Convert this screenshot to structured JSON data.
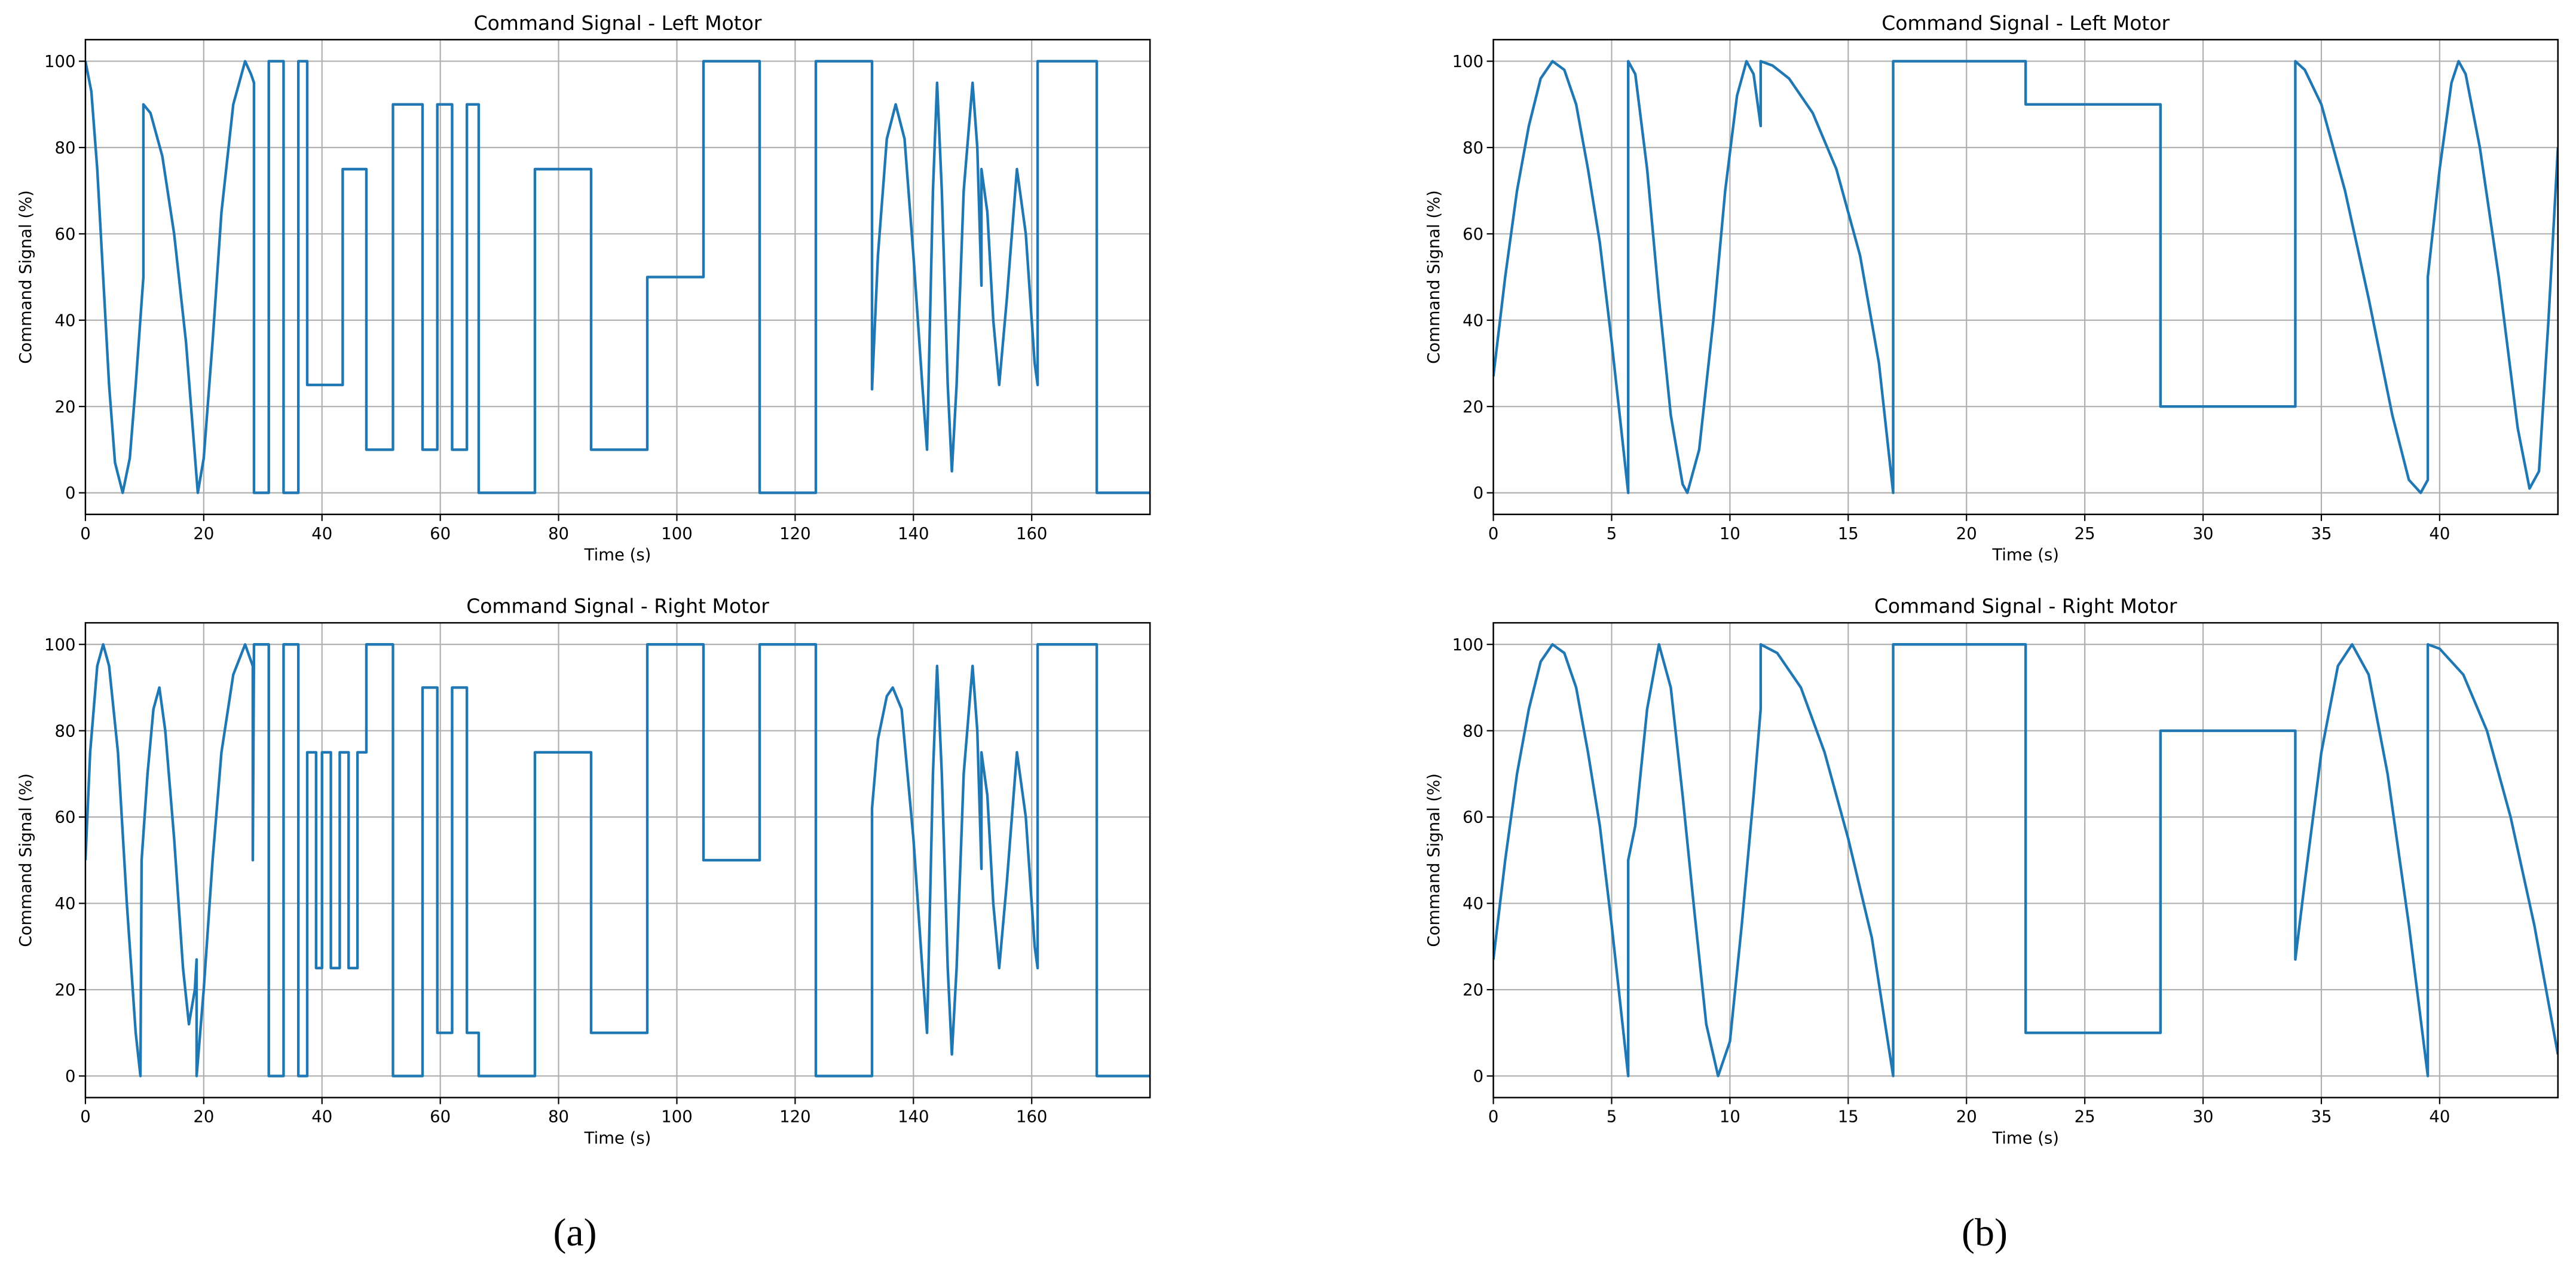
{
  "chart_data": [
    {
      "type": "line",
      "title": "Command Signal - Left Motor",
      "xlabel": "Time (s)",
      "ylabel": "Command Signal (%)",
      "color": "#1f77b4",
      "grid": true,
      "xlim": [
        0,
        180
      ],
      "xticks": [
        0,
        20,
        40,
        60,
        80,
        100,
        120,
        140,
        160
      ],
      "ylim": [
        -5,
        105
      ],
      "yticks": [
        0,
        20,
        40,
        60,
        80,
        100
      ],
      "x": [
        0,
        1,
        2,
        3,
        4,
        5,
        6.3,
        7.5,
        8.5,
        9.8,
        9.8,
        11,
        13,
        15,
        17,
        19,
        20,
        21.5,
        23,
        25,
        27,
        28,
        28.5,
        28.5,
        31,
        31,
        33.5,
        33.5,
        36,
        36,
        37.5,
        37.5,
        43.5,
        43.5,
        47.5,
        47.5,
        52,
        52,
        57,
        57,
        59.5,
        59.5,
        62,
        62,
        64.5,
        64.5,
        66.5,
        66.5,
        76,
        76,
        85.5,
        85.5,
        95,
        95,
        104.5,
        104.5,
        114,
        114,
        123.5,
        123.5,
        133,
        133,
        134,
        135.5,
        137,
        138.5,
        140,
        141.5,
        142.3,
        143.3,
        144,
        144.8,
        145.8,
        146.5,
        147.3,
        148.5,
        150,
        150.8,
        151.5,
        151.5,
        152.5,
        153.5,
        154.5,
        155.8,
        157.5,
        159,
        160.5,
        161,
        161,
        171,
        171,
        180
      ],
      "values": [
        100,
        93,
        75,
        50,
        25,
        7,
        0,
        8,
        25,
        50,
        90,
        88,
        78,
        60,
        35,
        0,
        8,
        35,
        65,
        90,
        100,
        97,
        95,
        0,
        0,
        100,
        100,
        0,
        0,
        100,
        100,
        25,
        25,
        75,
        75,
        10,
        10,
        90,
        90,
        10,
        10,
        90,
        90,
        10,
        10,
        90,
        90,
        0,
        0,
        75,
        75,
        10,
        10,
        50,
        50,
        100,
        100,
        0,
        0,
        100,
        100,
        24,
        55,
        82,
        90,
        82,
        55,
        25,
        10,
        70,
        95,
        70,
        25,
        5,
        25,
        70,
        95,
        80,
        48,
        75,
        65,
        40,
        25,
        45,
        75,
        60,
        30,
        25,
        100,
        100,
        0,
        0
      ]
    },
    {
      "type": "line",
      "title": "Command Signal - Left Motor",
      "xlabel": "Time (s)",
      "ylabel": "Command Signal (%)",
      "color": "#1f77b4",
      "grid": true,
      "xlim": [
        0,
        45
      ],
      "xticks": [
        0,
        5,
        10,
        15,
        20,
        25,
        30,
        35,
        40
      ],
      "ylim": [
        -5,
        105
      ],
      "yticks": [
        0,
        20,
        40,
        60,
        80,
        100
      ],
      "x": [
        0,
        0.5,
        1,
        1.5,
        2,
        2.5,
        3,
        3.5,
        4,
        4.5,
        5,
        5.5,
        5.7,
        5.7,
        6,
        6.5,
        7,
        7.5,
        8,
        8.2,
        8.7,
        9.3,
        9.8,
        10.3,
        10.7,
        11,
        11.3,
        11.3,
        11.8,
        12.5,
        13.5,
        14.5,
        15.5,
        16.3,
        16.9,
        16.9,
        22.5,
        22.5,
        28.2,
        28.2,
        33.9,
        33.9,
        34.3,
        35,
        36,
        37,
        38,
        38.7,
        39.2,
        39.5,
        39.5,
        40,
        40.5,
        40.8,
        41.1,
        41.7,
        42.5,
        43.3,
        43.8,
        44.2,
        44.6,
        45
      ],
      "values": [
        27,
        50,
        70,
        85,
        96,
        100,
        98,
        90,
        75,
        58,
        35,
        10,
        0,
        100,
        97,
        75,
        45,
        18,
        2,
        0,
        10,
        40,
        70,
        92,
        100,
        97,
        85,
        100,
        99,
        96,
        88,
        75,
        55,
        30,
        0,
        100,
        100,
        90,
        90,
        20,
        20,
        100,
        98,
        90,
        70,
        45,
        18,
        3,
        0,
        3,
        50,
        75,
        95,
        100,
        97,
        80,
        50,
        15,
        1,
        5,
        40,
        80
      ]
    },
    {
      "type": "line",
      "title": "Command Signal - Right Motor",
      "xlabel": "Time (s)",
      "ylabel": "Command Signal (%)",
      "color": "#1f77b4",
      "grid": true,
      "xlim": [
        0,
        180
      ],
      "xticks": [
        0,
        20,
        40,
        60,
        80,
        100,
        120,
        140,
        160
      ],
      "ylim": [
        -5,
        105
      ],
      "yticks": [
        0,
        20,
        40,
        60,
        80,
        100
      ],
      "x": [
        0,
        0.8,
        2,
        3,
        4,
        5.5,
        7,
        8.5,
        9.3,
        9.5,
        10.5,
        11.5,
        12.5,
        13.5,
        15,
        16.5,
        17.5,
        18.5,
        18.8,
        18.8,
        20,
        21.5,
        23,
        25,
        27,
        28.3,
        28.3,
        28.5,
        31,
        31,
        33.5,
        33.5,
        36,
        36,
        37.5,
        37.5,
        39,
        39,
        40,
        40,
        41.5,
        41.5,
        43,
        43,
        44.5,
        44.5,
        46,
        46,
        47.5,
        47.5,
        52,
        52,
        57,
        57,
        59.5,
        59.5,
        62,
        62,
        64.5,
        64.5,
        66.5,
        66.5,
        76,
        76,
        85.5,
        85.5,
        95,
        95,
        104.5,
        104.5,
        114,
        114,
        123.5,
        123.5,
        133,
        133,
        134,
        135.5,
        136.5,
        138,
        140,
        141.5,
        142.3,
        143.3,
        144,
        144.8,
        145.8,
        146.5,
        147.3,
        148.5,
        150,
        150.8,
        151.5,
        151.5,
        152.5,
        153.5,
        154.5,
        155.8,
        157.5,
        159,
        160.5,
        161,
        161,
        171,
        171,
        180
      ],
      "values": [
        50,
        75,
        95,
        100,
        95,
        75,
        40,
        10,
        0,
        50,
        70,
        85,
        90,
        80,
        55,
        25,
        12,
        20,
        27,
        0,
        20,
        50,
        75,
        93,
        100,
        95,
        50,
        100,
        100,
        0,
        0,
        100,
        100,
        0,
        0,
        75,
        75,
        25,
        25,
        75,
        75,
        25,
        25,
        75,
        75,
        25,
        25,
        75,
        75,
        100,
        100,
        0,
        0,
        90,
        90,
        10,
        10,
        90,
        90,
        10,
        10,
        0,
        0,
        75,
        75,
        10,
        10,
        100,
        100,
        50,
        50,
        100,
        100,
        0,
        0,
        62,
        78,
        88,
        90,
        85,
        55,
        25,
        10,
        70,
        95,
        70,
        25,
        5,
        25,
        70,
        95,
        80,
        48,
        75,
        65,
        40,
        25,
        45,
        75,
        60,
        30,
        25,
        100,
        100,
        0,
        0
      ]
    },
    {
      "type": "line",
      "title": "Command Signal - Right Motor",
      "xlabel": "Time (s)",
      "ylabel": "Command Signal (%)",
      "color": "#1f77b4",
      "grid": true,
      "xlim": [
        0,
        45
      ],
      "xticks": [
        0,
        5,
        10,
        15,
        20,
        25,
        30,
        35,
        40
      ],
      "ylim": [
        -5,
        105
      ],
      "yticks": [
        0,
        20,
        40,
        60,
        80,
        100
      ],
      "x": [
        0,
        0.5,
        1,
        1.5,
        2,
        2.5,
        3,
        3.5,
        4,
        4.5,
        5,
        5.5,
        5.7,
        5.7,
        6,
        6.5,
        7,
        7.5,
        8,
        8.5,
        9,
        9.5,
        10,
        10.5,
        11,
        11.3,
        11.3,
        12,
        13,
        14,
        15,
        16,
        16.9,
        16.9,
        22.5,
        22.5,
        28.2,
        28.2,
        33.9,
        33.9,
        34.3,
        35,
        35.7,
        36.3,
        37,
        37.8,
        38.7,
        39.5,
        39.5,
        40,
        41,
        42,
        43,
        44,
        45
      ],
      "values": [
        27,
        50,
        70,
        85,
        96,
        100,
        98,
        90,
        75,
        58,
        35,
        10,
        0,
        50,
        58,
        85,
        100,
        90,
        65,
        38,
        12,
        0,
        8,
        35,
        65,
        85,
        100,
        98,
        90,
        75,
        55,
        32,
        0,
        100,
        100,
        10,
        10,
        80,
        80,
        27,
        45,
        75,
        95,
        100,
        93,
        70,
        35,
        0,
        100,
        99,
        93,
        80,
        60,
        35,
        5
      ]
    }
  ],
  "panel_labels": [
    "(a)",
    "(b)"
  ]
}
